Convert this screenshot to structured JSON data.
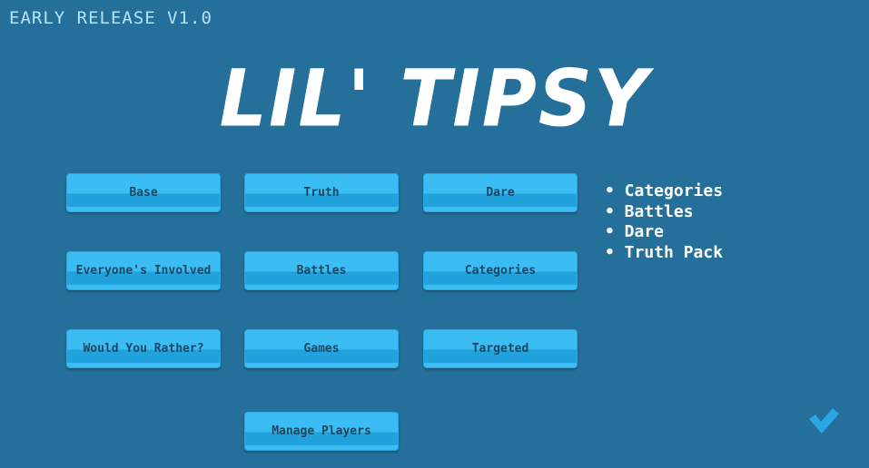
{
  "version_label": "EARLY RELEASE V1.0",
  "title": "LIL' TIPSY",
  "buttons": [
    "Base",
    "Truth",
    "Dare",
    "Everyone's Involved",
    "Battles",
    "Categories",
    "Would You Rather?",
    "Games",
    "Targeted",
    "Manage Players"
  ],
  "selected_list": [
    "• Categories",
    "• Battles",
    "• Dare",
    "• Truth Pack"
  ],
  "confirm_icon": "checkmark-icon",
  "colors": {
    "background": "#24709b",
    "button": "#3bbcf2",
    "button_text": "#1d4661",
    "checkmark": "#2aa6e4"
  }
}
